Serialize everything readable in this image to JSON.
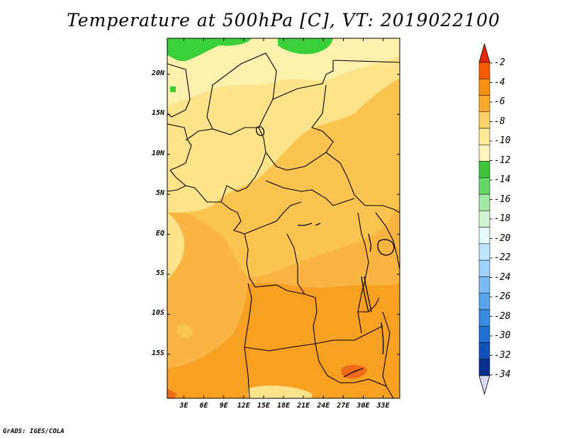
{
  "title": "Temperature at 500hPa [C], VT: 2019022100",
  "credit": "GrADS: IGES/COLA",
  "map": {
    "lat_labels": [
      "20N",
      "15N",
      "10N",
      "5N",
      "EQ",
      "5S",
      "10S",
      "15S"
    ],
    "lon_labels": [
      "3E",
      "6E",
      "9E",
      "12E",
      "15E",
      "18E",
      "21E",
      "24E",
      "27E",
      "30E",
      "33E"
    ],
    "lat_values": [
      20,
      15,
      10,
      5,
      0,
      -5,
      -10,
      -15
    ],
    "lon_values": [
      3,
      6,
      9,
      12,
      15,
      18,
      21,
      24,
      27,
      30,
      33
    ]
  },
  "colorbar": {
    "labels": [
      "-2",
      "-4",
      "-6",
      "-8",
      "-10",
      "-12",
      "-14",
      "-16",
      "-18",
      "-20",
      "-22",
      "-24",
      "-26",
      "-28",
      "-30",
      "-32",
      "-34"
    ],
    "colors": [
      "#e8260c",
      "#f55a05",
      "#f88f10",
      "#fbaa2e",
      "#fdd36a",
      "#fee99a",
      "#fdf4bf",
      "#3fc43f",
      "#66d866",
      "#a4e6a4",
      "#d3f5d3",
      "#e7fbff",
      "#bde4fb",
      "#9fd1f8",
      "#7bbaf3",
      "#5aa4ec",
      "#3b8be4",
      "#2170d3",
      "#1053b6",
      "#0a2f8c",
      "#d9d9f5"
    ]
  },
  "colors": {
    "green_band": "#3ccf3c",
    "pale_yellow": "#fdf1ae",
    "yellow": "#fde38a",
    "light_orange": "#fbc350",
    "orange": "#f9ad36",
    "deep_orange": "#f7941a",
    "red_orange": "#ee6a1a"
  }
}
